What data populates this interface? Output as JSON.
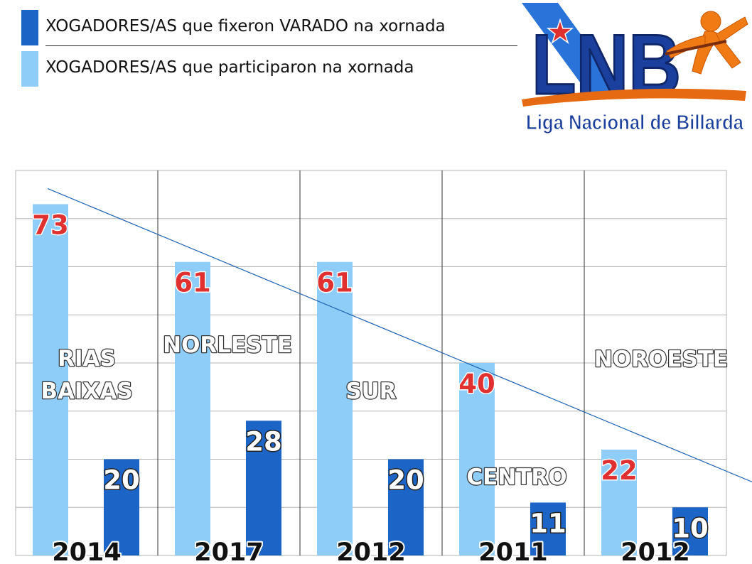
{
  "legend": {
    "items": [
      {
        "label": "XOGADORES/AS que fixeron VARADO na  xornada",
        "color": "#1c64c6"
      },
      {
        "label": "XOGADORES/AS que participaron na xornada",
        "color": "#8ecdf7"
      }
    ]
  },
  "logo": {
    "acronym": "LNB",
    "name": "Liga Nacional de Billarda"
  },
  "chart_data": {
    "type": "bar",
    "ylim": [
      0,
      80
    ],
    "grid": true,
    "colors": {
      "participants": "#8ecdf7",
      "varado": "#1c64c6",
      "participant_label": "#e03030",
      "trend": "#1a60b0"
    },
    "categories": [
      "2014",
      "2017",
      "2012",
      "2011",
      "2012"
    ],
    "regions": [
      "RIAS\nBAIXAS",
      "NORLESTE",
      "SUR",
      "CENTRO",
      "NOROESTE"
    ],
    "series": [
      {
        "name": "XOGADORES/AS que participaron na xornada",
        "values": [
          73,
          61,
          61,
          40,
          22
        ]
      },
      {
        "name": "XOGADORES/AS que fixeron VARADO na  xornada",
        "values": [
          20,
          28,
          20,
          11,
          10
        ]
      }
    ],
    "trendline": {
      "series": "XOGADORES/AS que participaron na xornada",
      "type": "linear"
    }
  }
}
